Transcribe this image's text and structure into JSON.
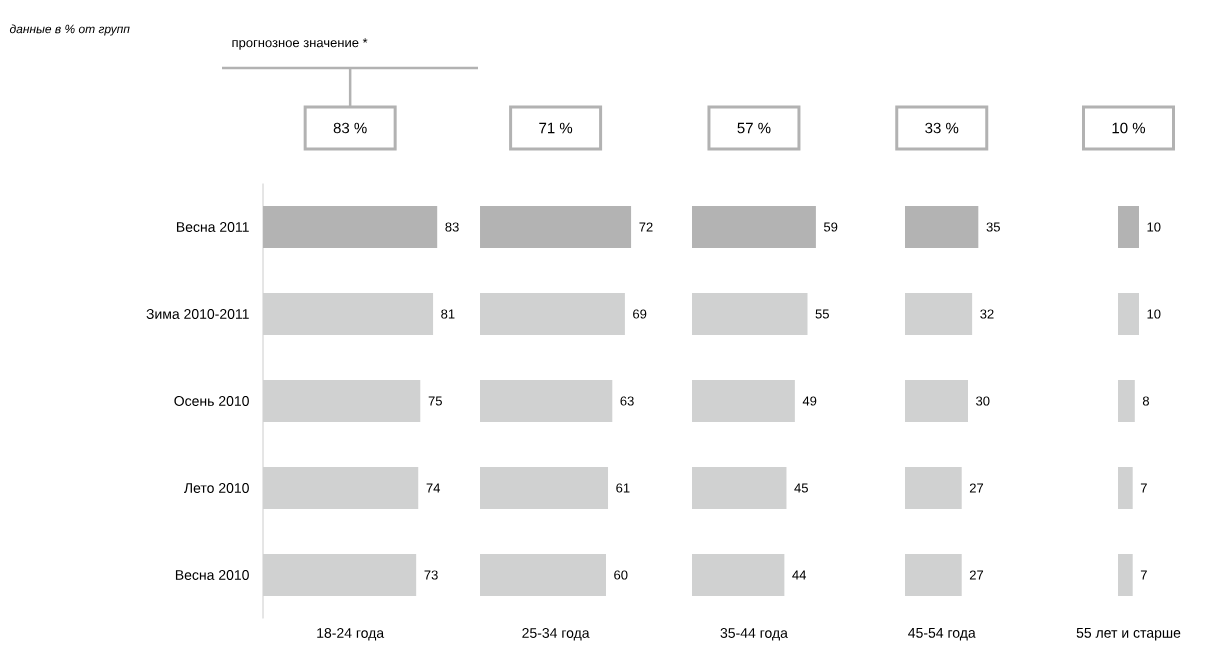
{
  "chart_data": [
    {
      "type": "bar",
      "orientation": "horizontal",
      "title": "данные в % от групп",
      "subtitle": "прогнозное значение *",
      "xlabel": "18-24 года",
      "annotations": [
        "83 %"
      ],
      "categories": [
        "Весна 2011",
        "Зима 2010-2011",
        "Осень 2010",
        "Лето 2010",
        "Весна 2010"
      ],
      "values": [
        83,
        81,
        75,
        74,
        73
      ],
      "colors": [
        "#b3b3b3",
        "#d0d1d1",
        "#d0d1d1",
        "#d0d1d1",
        "#d0d1d1"
      ],
      "data_labels": true
    },
    {
      "type": "bar",
      "orientation": "horizontal",
      "xlabel": "25-34 года",
      "annotations": [
        "71 %"
      ],
      "categories": [
        null,
        null,
        null,
        null,
        null
      ],
      "values": [
        72,
        69,
        63,
        61,
        60
      ],
      "colors": [
        "#b3b3b3",
        "#d0d1d1",
        "#d0d1d1",
        "#d0d1d1",
        "#d0d1d1"
      ],
      "data_labels": true
    },
    {
      "type": "bar",
      "orientation": "horizontal",
      "xlabel": "35-44 года",
      "annotations": [
        "57 %"
      ],
      "categories": [
        null,
        null,
        null,
        null,
        null
      ],
      "values": [
        59,
        55,
        49,
        45,
        44
      ],
      "colors": [
        "#b3b3b3",
        "#d0d1d1",
        "#d0d1d1",
        "#d0d1d1",
        "#d0d1d1"
      ],
      "data_labels": true
    },
    {
      "type": "bar",
      "orientation": "horizontal",
      "xlabel": "45-54 года",
      "annotations": [
        "33 %"
      ],
      "categories": [
        null,
        null,
        null,
        null,
        null
      ],
      "values": [
        35,
        32,
        30,
        27,
        27
      ],
      "colors": [
        "#b3b3b3",
        "#d0d1d1",
        "#d0d1d1",
        "#d0d1d1",
        "#d0d1d1"
      ],
      "data_labels": true
    },
    {
      "type": "bar",
      "orientation": "horizontal",
      "xlabel": "55 лет и старше",
      "annotations": [
        "10 %"
      ],
      "categories": [
        null,
        null,
        null,
        null,
        null
      ],
      "values": [
        10,
        10,
        8,
        7,
        7
      ],
      "colors": [
        "#b3b3b3",
        "#d0d1d1",
        "#d0d1d1",
        "#d0d1d1",
        "#d0d1d1"
      ],
      "data_labels": true
    }
  ]
}
